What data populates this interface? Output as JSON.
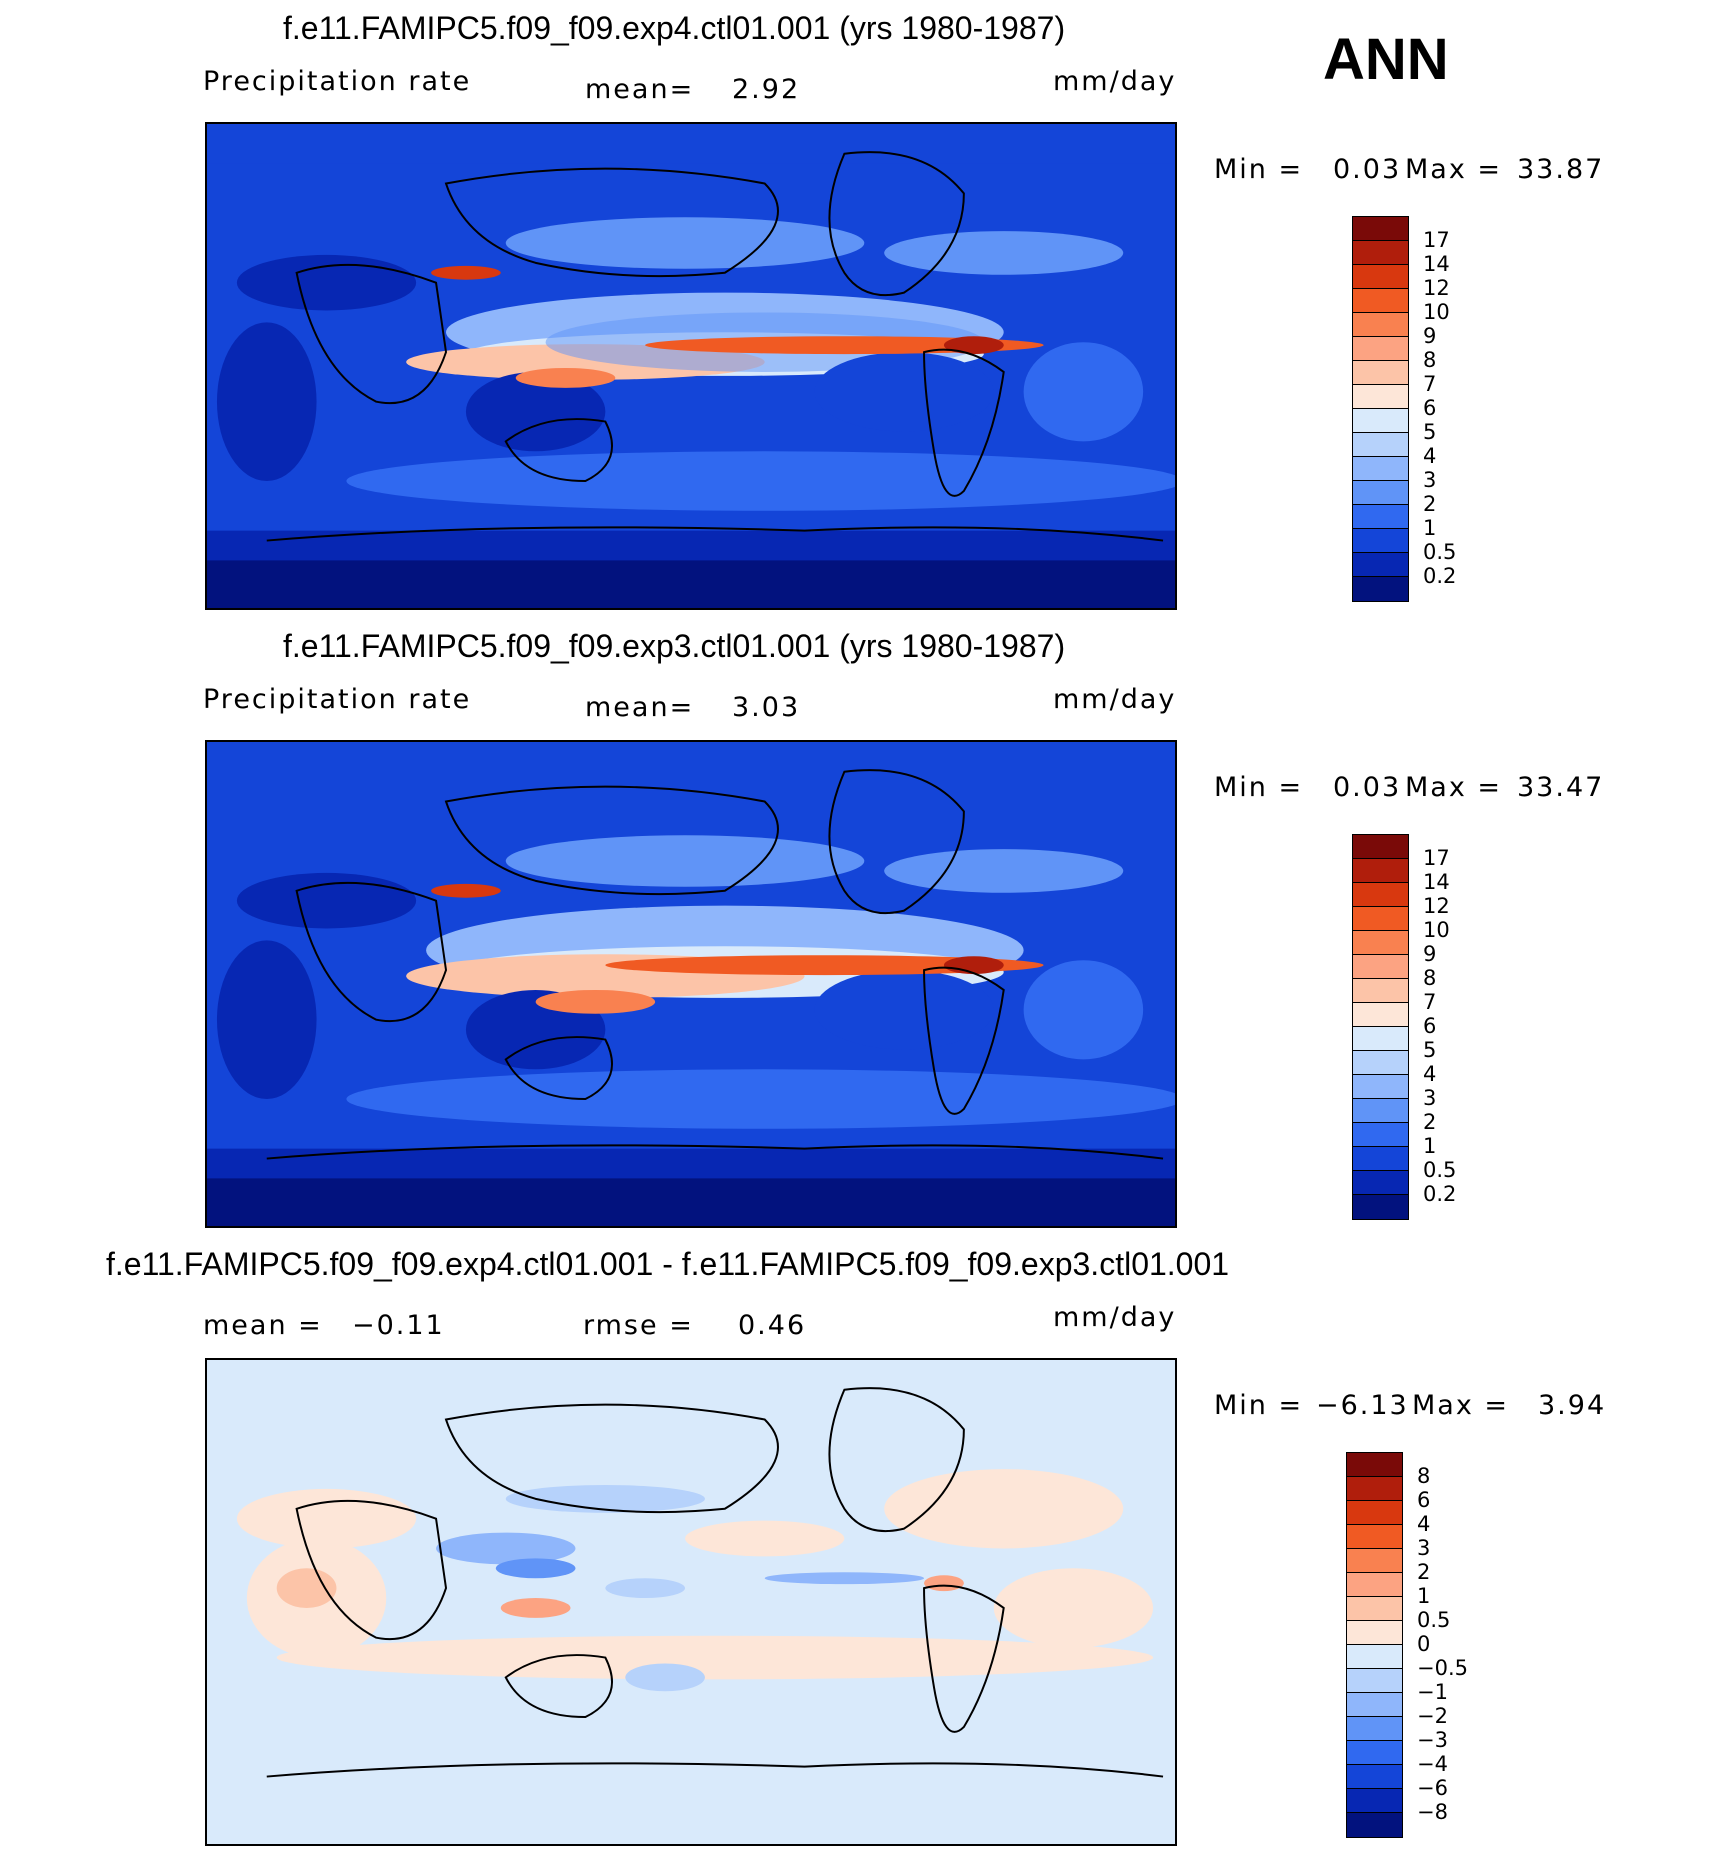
{
  "season": "ANN",
  "panels": [
    {
      "title": "f.e11.FAMIPC5.f09_f09.exp4.ctl01.001 (yrs 1980-1987)",
      "left_label": "Precipitation rate",
      "mid_label": "mean=",
      "mid_value": "2.92",
      "right_label": "",
      "right_value": "",
      "units": "mm/day",
      "stats": {
        "min_label": "Min =",
        "min": "0.03",
        "max_label": "Max =",
        "max": "33.87"
      },
      "colorbar": {
        "ticks": [
          "17",
          "14",
          "12",
          "10",
          "9",
          "8",
          "7",
          "6",
          "5",
          "4",
          "3",
          "2",
          "1",
          "0.5",
          "0.2"
        ],
        "colors": [
          "#7a0a08",
          "#b01e0c",
          "#d8380f",
          "#f05a23",
          "#f98150",
          "#fca382",
          "#fcc4a8",
          "#fde6d8",
          "#d9eafb",
          "#b6d2fb",
          "#8fb6fb",
          "#6094f7",
          "#3069f0",
          "#1445d8",
          "#0727b3",
          "#02127e"
        ]
      }
    },
    {
      "title": "f.e11.FAMIPC5.f09_f09.exp3.ctl01.001 (yrs 1980-1987)",
      "left_label": "Precipitation rate",
      "mid_label": "mean=",
      "mid_value": "3.03",
      "right_label": "",
      "right_value": "",
      "units": "mm/day",
      "stats": {
        "min_label": "Min =",
        "min": "0.03",
        "max_label": "Max =",
        "max": "33.47"
      },
      "colorbar": {
        "ticks": [
          "17",
          "14",
          "12",
          "10",
          "9",
          "8",
          "7",
          "6",
          "5",
          "4",
          "3",
          "2",
          "1",
          "0.5",
          "0.2"
        ],
        "colors": [
          "#7a0a08",
          "#b01e0c",
          "#d8380f",
          "#f05a23",
          "#f98150",
          "#fca382",
          "#fcc4a8",
          "#fde6d8",
          "#d9eafb",
          "#b6d2fb",
          "#8fb6fb",
          "#6094f7",
          "#3069f0",
          "#1445d8",
          "#0727b3",
          "#02127e"
        ]
      }
    },
    {
      "title": "f.e11.FAMIPC5.f09_f09.exp4.ctl01.001 - f.e11.FAMIPC5.f09_f09.exp3.ctl01.001",
      "left_label": "mean =",
      "left_value": "−0.11",
      "mid_label": "rmse =",
      "mid_value": "0.46",
      "units": "mm/day",
      "stats": {
        "min_label": "Min =",
        "min": "−6.13",
        "max_label": "Max =",
        "max": "3.94"
      },
      "colorbar": {
        "ticks": [
          "8",
          "6",
          "4",
          "3",
          "2",
          "1",
          "0.5",
          "0",
          "−0.5",
          "−1",
          "−2",
          "−3",
          "−4",
          "−6",
          "−8"
        ],
        "colors": [
          "#7a0a08",
          "#b01e0c",
          "#d8380f",
          "#f05a23",
          "#f98150",
          "#fca382",
          "#fcc4a8",
          "#fde6d8",
          "#d9eafb",
          "#b6d2fb",
          "#8fb6fb",
          "#6094f7",
          "#3069f0",
          "#1445d8",
          "#0727b3",
          "#02127e"
        ]
      }
    }
  ]
}
